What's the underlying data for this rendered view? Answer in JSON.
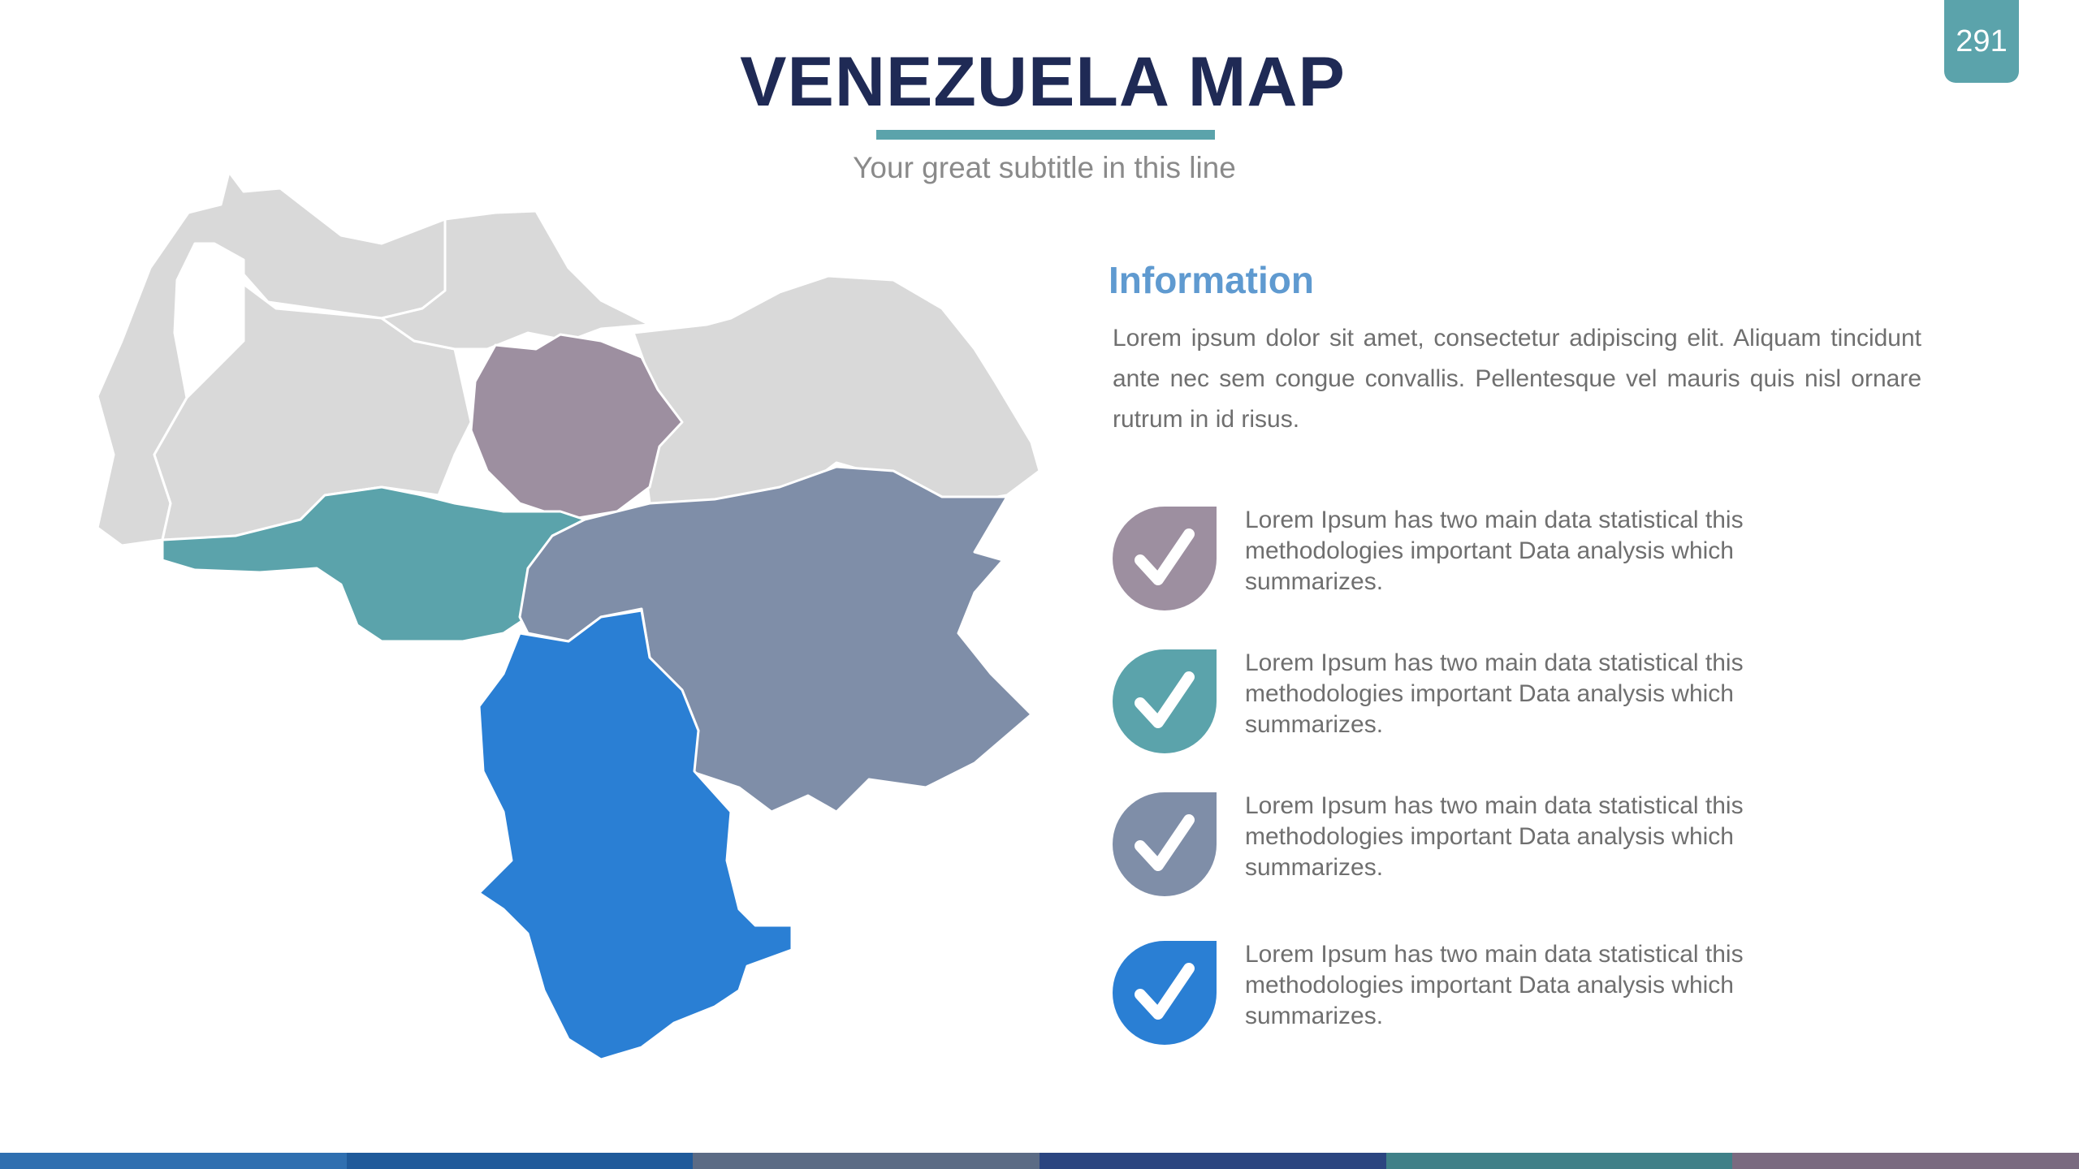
{
  "slide": {
    "page_number": "291",
    "title": "VENEZUELA MAP",
    "subtitle": "Your great subtitle in this line"
  },
  "info": {
    "heading": "Information",
    "body": "Lorem ipsum dolor sit amet, consectetur adipiscing elit. Aliquam tincidunt ante nec sem congue convallis. Pellentesque vel mauris quis nisl ornare rutrum in id risus."
  },
  "items": [
    {
      "text": "Lorem Ipsum has two main data statistical this methodologies important Data analysis which summarizes.",
      "color": "#9d8fa0",
      "icon": "check-icon"
    },
    {
      "text": "Lorem Ipsum has two main data statistical this methodologies important Data analysis which summarizes.",
      "color": "#5ba3ab",
      "icon": "check-icon"
    },
    {
      "text": "Lorem Ipsum has two main data statistical this methodologies important Data analysis which summarizes.",
      "color": "#7f8ea8",
      "icon": "check-icon"
    },
    {
      "text": "Lorem Ipsum has two main data statistical this methodologies important Data analysis which summarizes.",
      "color": "#2a7fd4",
      "icon": "check-icon"
    }
  ],
  "map": {
    "base_color": "#d9d9d9",
    "highlight_colors": {
      "central_region": "#9d8fa0",
      "southwest_region": "#5ba3ab",
      "southeast_region": "#7f8ea8",
      "south_region": "#2a7fd4"
    }
  },
  "colors": {
    "accent": "#5ba3ab",
    "title": "#1f2a55",
    "heading": "#5f9ad0",
    "body_text": "#6f6f6f",
    "bottom_bar": [
      "#2f6fb0",
      "#1f5a9a",
      "#5b6b85",
      "#2b4580",
      "#3f8088",
      "#7a6a80"
    ]
  }
}
